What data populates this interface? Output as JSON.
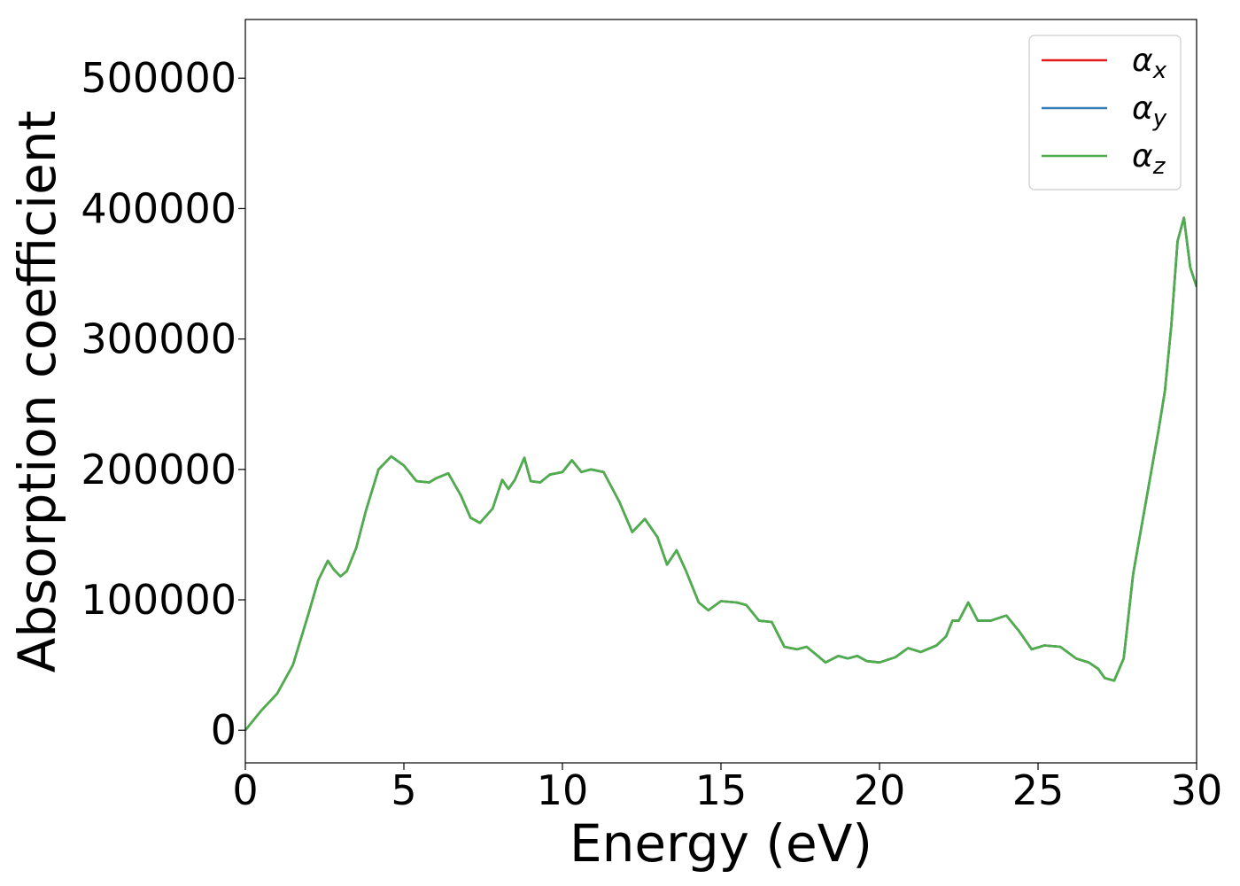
{
  "chart_data": {
    "type": "line",
    "title": "",
    "xlabel": "Energy (eV)",
    "ylabel": "Absorption coefficient",
    "xlim": [
      0,
      30
    ],
    "ylim": [
      -25000,
      545000
    ],
    "x_ticks": [
      0,
      5,
      10,
      15,
      20,
      25,
      30
    ],
    "x_tick_labels": [
      "0",
      "5",
      "10",
      "15",
      "20",
      "25",
      "30"
    ],
    "y_ticks": [
      0,
      100000,
      200000,
      300000,
      400000,
      500000
    ],
    "y_tick_labels": [
      "0",
      "100000",
      "200000",
      "300000",
      "400000",
      "500000"
    ],
    "grid": false,
    "legend_position": "top-right",
    "x": [
      0,
      0.5,
      1.0,
      1.5,
      2.0,
      2.3,
      2.6,
      2.8,
      3.0,
      3.2,
      3.5,
      3.8,
      4.2,
      4.6,
      5.0,
      5.4,
      5.8,
      6.0,
      6.4,
      6.8,
      7.1,
      7.4,
      7.8,
      8.1,
      8.3,
      8.5,
      8.8,
      9.0,
      9.3,
      9.6,
      10.0,
      10.3,
      10.6,
      10.9,
      11.3,
      11.8,
      12.2,
      12.6,
      13.0,
      13.3,
      13.6,
      13.9,
      14.3,
      14.6,
      15.0,
      15.5,
      15.8,
      16.2,
      16.6,
      17.0,
      17.4,
      17.7,
      18.0,
      18.3,
      18.7,
      19.0,
      19.3,
      19.6,
      20.0,
      20.5,
      20.9,
      21.3,
      21.8,
      22.1,
      22.3,
      22.5,
      22.8,
      23.1,
      23.5,
      24.0,
      24.4,
      24.8,
      25.2,
      25.7,
      26.2,
      26.6,
      26.9,
      27.1,
      27.4,
      27.7,
      28.0,
      28.4,
      28.8,
      29.0,
      29.2,
      29.4,
      29.6,
      29.8,
      30.0
    ],
    "series": [
      {
        "name": "α_x",
        "color": "#e41a1c",
        "y": [
          0,
          15000,
          28000,
          50000,
          90000,
          115000,
          130000,
          123000,
          118000,
          122000,
          140000,
          168000,
          200000,
          210000,
          203000,
          191000,
          190000,
          193000,
          197000,
          180000,
          163000,
          159000,
          170000,
          192000,
          185000,
          192000,
          209000,
          191000,
          190000,
          196000,
          198000,
          207000,
          198000,
          200000,
          198000,
          175000,
          152000,
          162000,
          148000,
          127000,
          138000,
          122000,
          98000,
          92000,
          99000,
          98000,
          96000,
          84000,
          83000,
          64000,
          62000,
          64000,
          58000,
          52000,
          57000,
          55000,
          57000,
          53000,
          52000,
          56000,
          63000,
          60000,
          65000,
          72000,
          84000,
          84000,
          98000,
          84000,
          84000,
          88000,
          76000,
          62000,
          65000,
          64000,
          55000,
          52000,
          47000,
          40000,
          38000,
          55000,
          120000,
          175000,
          230000,
          260000,
          310000,
          375000,
          393000,
          355000,
          340000
        ]
      },
      {
        "name": "α_y",
        "color": "#377eb8",
        "y": [
          0,
          15000,
          28000,
          50000,
          90000,
          115000,
          130000,
          123000,
          118000,
          122000,
          140000,
          168000,
          200000,
          210000,
          203000,
          191000,
          190000,
          193000,
          197000,
          180000,
          163000,
          159000,
          170000,
          192000,
          185000,
          192000,
          209000,
          191000,
          190000,
          196000,
          198000,
          207000,
          198000,
          200000,
          198000,
          175000,
          152000,
          162000,
          148000,
          127000,
          138000,
          122000,
          98000,
          92000,
          99000,
          98000,
          96000,
          84000,
          83000,
          64000,
          62000,
          64000,
          58000,
          52000,
          57000,
          55000,
          57000,
          53000,
          52000,
          56000,
          63000,
          60000,
          65000,
          72000,
          84000,
          84000,
          98000,
          84000,
          84000,
          88000,
          76000,
          62000,
          65000,
          64000,
          55000,
          52000,
          47000,
          40000,
          38000,
          55000,
          120000,
          175000,
          230000,
          260000,
          310000,
          375000,
          393000,
          355000,
          340000
        ]
      },
      {
        "name": "α_z",
        "color": "#4daf4a",
        "y": [
          0,
          15000,
          28000,
          50000,
          90000,
          115000,
          130000,
          123000,
          118000,
          122000,
          140000,
          168000,
          200000,
          210000,
          203000,
          191000,
          190000,
          193000,
          197000,
          180000,
          163000,
          159000,
          170000,
          192000,
          185000,
          192000,
          209000,
          191000,
          190000,
          196000,
          198000,
          207000,
          198000,
          200000,
          198000,
          175000,
          152000,
          162000,
          148000,
          127000,
          138000,
          122000,
          98000,
          92000,
          99000,
          98000,
          96000,
          84000,
          83000,
          64000,
          62000,
          64000,
          58000,
          52000,
          57000,
          55000,
          57000,
          53000,
          52000,
          56000,
          63000,
          60000,
          65000,
          72000,
          84000,
          84000,
          98000,
          84000,
          84000,
          88000,
          76000,
          62000,
          65000,
          64000,
          55000,
          52000,
          47000,
          40000,
          38000,
          55000,
          120000,
          175000,
          230000,
          260000,
          310000,
          375000,
          393000,
          355000,
          340000
        ]
      }
    ],
    "legend": [
      {
        "symbol": "α",
        "sub": "x"
      },
      {
        "symbol": "α",
        "sub": "y"
      },
      {
        "symbol": "α",
        "sub": "z"
      }
    ]
  }
}
